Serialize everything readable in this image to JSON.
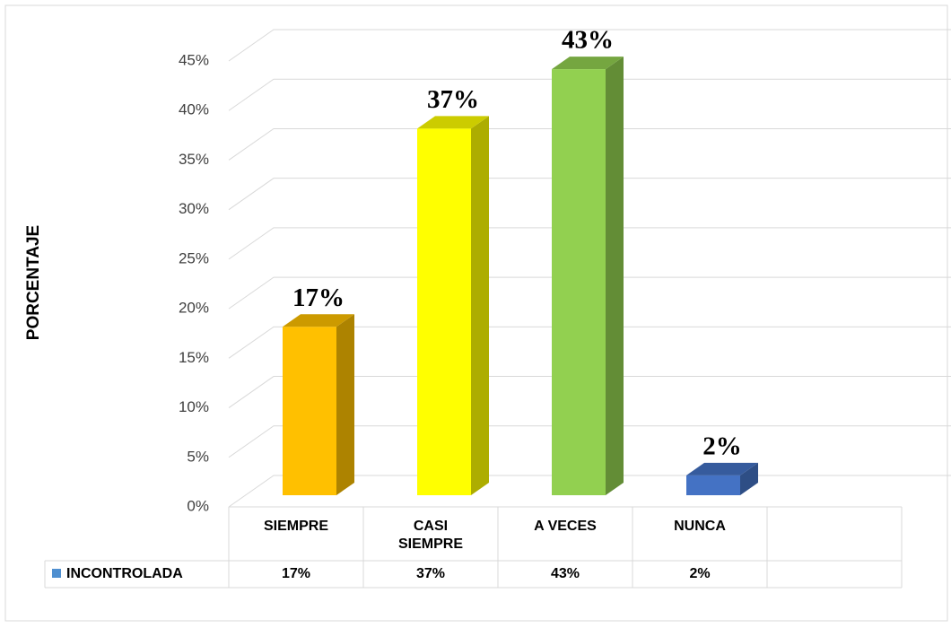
{
  "chart_data": {
    "type": "bar3d",
    "y_label": "PORCENTAJE",
    "categories": [
      "SIEMPRE",
      "CASI SIEMPRE",
      "A VECES",
      "NUNCA"
    ],
    "series": [
      {
        "name": "INCONTROLADA",
        "color": "#4f8fd0",
        "values": [
          17,
          37,
          43,
          2
        ],
        "value_labels": [
          "17%",
          "37%",
          "43%",
          "2%"
        ],
        "colors": [
          "#ffc000",
          "#ffff00",
          "#92d050",
          "#4472c4"
        ]
      }
    ],
    "ylim": [
      0,
      45
    ],
    "yticks": [
      {
        "value": 0,
        "label": "0%"
      },
      {
        "value": 5,
        "label": "5%"
      },
      {
        "value": 10,
        "label": "10%"
      },
      {
        "value": 15,
        "label": "15%"
      },
      {
        "value": 20,
        "label": "20%"
      },
      {
        "value": 25,
        "label": "25%"
      },
      {
        "value": 30,
        "label": "30%"
      },
      {
        "value": 35,
        "label": "35%"
      },
      {
        "value": 40,
        "label": "40%"
      },
      {
        "value": 45,
        "label": "45%"
      }
    ],
    "grid": true
  }
}
